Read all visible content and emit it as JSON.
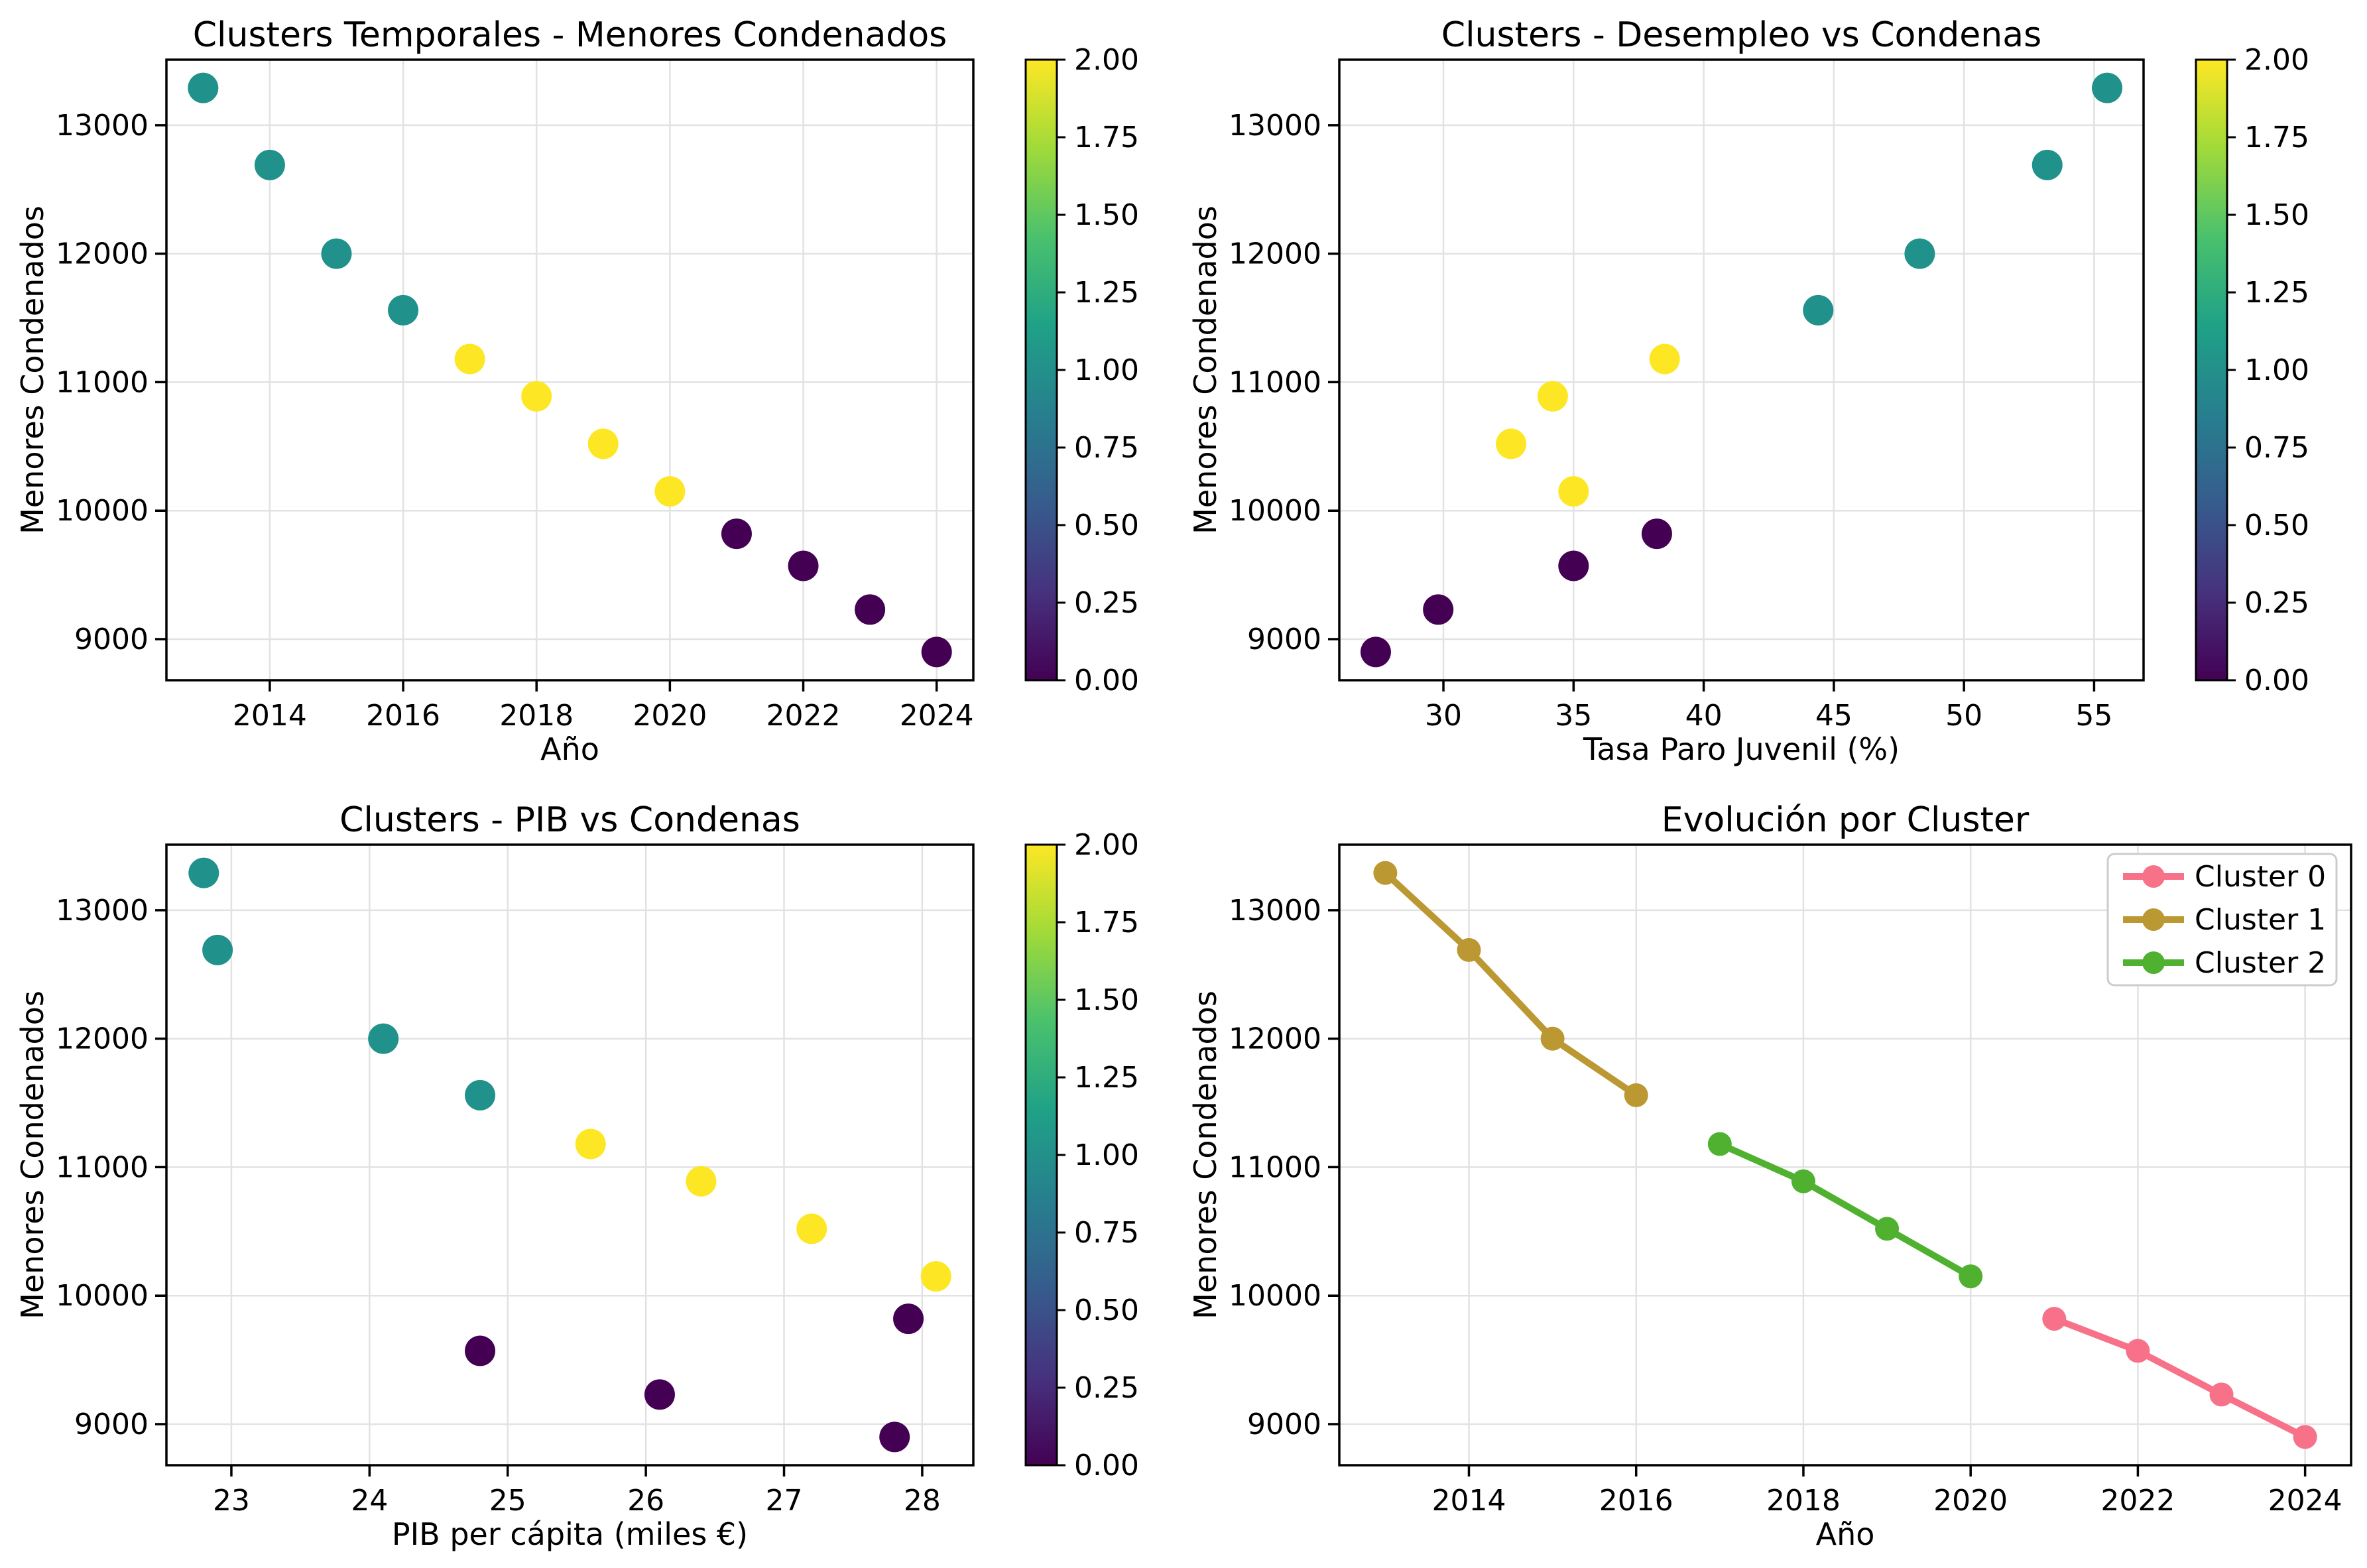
{
  "figure": {
    "background": "#ffffff"
  },
  "colors": {
    "cluster_scatter": {
      "0": "#440154",
      "1": "#21918c",
      "2": "#fde725"
    },
    "cluster_line": {
      "Cluster 0": "#f77189",
      "Cluster 1": "#bb9832",
      "Cluster 2": "#50b131"
    },
    "viridis_stops": [
      "#440154",
      "#46327e",
      "#365c8d",
      "#277f8e",
      "#1fa187",
      "#4ac16d",
      "#a0da39",
      "#fde725"
    ],
    "grid": "#e2e2e2",
    "axis": "#000000",
    "text": "#000000",
    "legend_border": "#cccccc",
    "background": "#ffffff"
  },
  "chart_data": [
    {
      "type": "scatter",
      "title": "Clusters Temporales - Menores Condenados",
      "xlabel": "Año",
      "ylabel": "Menores Condenados",
      "xlim": [
        2012.45,
        2024.55
      ],
      "ylim": [
        8680,
        13510
      ],
      "xticks": [
        2014,
        2016,
        2018,
        2020,
        2022,
        2024
      ],
      "xtick_labels": [
        "2014",
        "2016",
        "2018",
        "2020",
        "2022",
        "2024"
      ],
      "yticks": [
        9000,
        10000,
        11000,
        12000,
        13000
      ],
      "ytick_labels": [
        "9000",
        "10000",
        "11000",
        "12000",
        "13000"
      ],
      "grid": true,
      "points": {
        "x": [
          2013,
          2014,
          2015,
          2016,
          2017,
          2018,
          2019,
          2020,
          2021,
          2022,
          2023,
          2024
        ],
        "y": [
          13290,
          12690,
          12000,
          11560,
          11180,
          10890,
          10520,
          10150,
          9820,
          9570,
          9230,
          8900
        ],
        "cluster": [
          1,
          1,
          1,
          1,
          2,
          2,
          2,
          2,
          0,
          0,
          0,
          0
        ]
      },
      "colorbar": {
        "vmin": 0,
        "vmax": 2,
        "tick_labels": [
          "0.00",
          "0.25",
          "0.50",
          "0.75",
          "1.00",
          "1.25",
          "1.50",
          "1.75",
          "2.00"
        ]
      }
    },
    {
      "type": "scatter",
      "title": "Clusters - Desempleo vs Condenas",
      "xlabel": "Tasa Paro Juvenil (%)",
      "ylabel": "Menores Condenados",
      "xlim": [
        26.0,
        56.9
      ],
      "ylim": [
        8680,
        13510
      ],
      "xticks": [
        30,
        35,
        40,
        45,
        50,
        55
      ],
      "xtick_labels": [
        "30",
        "35",
        "40",
        "45",
        "50",
        "55"
      ],
      "yticks": [
        9000,
        10000,
        11000,
        12000,
        13000
      ],
      "ytick_labels": [
        "9000",
        "10000",
        "11000",
        "12000",
        "13000"
      ],
      "grid": true,
      "points": {
        "x": [
          55.5,
          53.2,
          48.3,
          44.4,
          38.5,
          34.2,
          32.6,
          35.0,
          38.2,
          35.0,
          29.8,
          27.4
        ],
        "y": [
          13290,
          12690,
          12000,
          11560,
          11180,
          10890,
          10520,
          10150,
          9820,
          9570,
          9230,
          8900
        ],
        "cluster": [
          1,
          1,
          1,
          1,
          2,
          2,
          2,
          2,
          0,
          0,
          0,
          0
        ]
      },
      "colorbar": {
        "vmin": 0,
        "vmax": 2,
        "tick_labels": [
          "0.00",
          "0.25",
          "0.50",
          "0.75",
          "1.00",
          "1.25",
          "1.50",
          "1.75",
          "2.00"
        ]
      }
    },
    {
      "type": "scatter",
      "title": "Clusters - PIB vs Condenas",
      "xlabel": "PIB per cápita (miles €)",
      "ylabel": "Menores Condenados",
      "xlim": [
        22.53,
        28.37
      ],
      "ylim": [
        8680,
        13510
      ],
      "xticks": [
        23,
        24,
        25,
        26,
        27,
        28
      ],
      "xtick_labels": [
        "23",
        "24",
        "25",
        "26",
        "27",
        "28"
      ],
      "yticks": [
        9000,
        10000,
        11000,
        12000,
        13000
      ],
      "ytick_labels": [
        "9000",
        "10000",
        "11000",
        "12000",
        "13000"
      ],
      "grid": true,
      "points": {
        "x": [
          22.8,
          22.9,
          24.1,
          24.8,
          25.6,
          26.4,
          27.2,
          28.1,
          27.9,
          24.8,
          26.1,
          27.8
        ],
        "y": [
          13290,
          12690,
          12000,
          11560,
          11180,
          10890,
          10520,
          10150,
          9820,
          9570,
          9230,
          8900
        ],
        "cluster": [
          1,
          1,
          1,
          1,
          2,
          2,
          2,
          2,
          0,
          0,
          0,
          0
        ]
      },
      "colorbar": {
        "vmin": 0,
        "vmax": 2,
        "tick_labels": [
          "0.00",
          "0.25",
          "0.50",
          "0.75",
          "1.00",
          "1.25",
          "1.50",
          "1.75",
          "2.00"
        ]
      }
    },
    {
      "type": "line",
      "title": "Evolución por Cluster",
      "xlabel": "Año",
      "ylabel": "Menores Condenados",
      "xlim": [
        2012.45,
        2024.55
      ],
      "ylim": [
        8680,
        13510
      ],
      "xticks": [
        2014,
        2016,
        2018,
        2020,
        2022,
        2024
      ],
      "xtick_labels": [
        "2014",
        "2016",
        "2018",
        "2020",
        "2022",
        "2024"
      ],
      "yticks": [
        9000,
        10000,
        11000,
        12000,
        13000
      ],
      "ytick_labels": [
        "9000",
        "10000",
        "11000",
        "12000",
        "13000"
      ],
      "grid": true,
      "legend_position": "upper right",
      "series": [
        {
          "name": "Cluster 0",
          "x": [
            2021,
            2022,
            2023,
            2024
          ],
          "y": [
            9820,
            9570,
            9230,
            8900
          ]
        },
        {
          "name": "Cluster 1",
          "x": [
            2013,
            2014,
            2015,
            2016
          ],
          "y": [
            13290,
            12690,
            12000,
            11560
          ]
        },
        {
          "name": "Cluster 2",
          "x": [
            2017,
            2018,
            2019,
            2020
          ],
          "y": [
            11180,
            10890,
            10520,
            10150
          ]
        }
      ]
    }
  ]
}
